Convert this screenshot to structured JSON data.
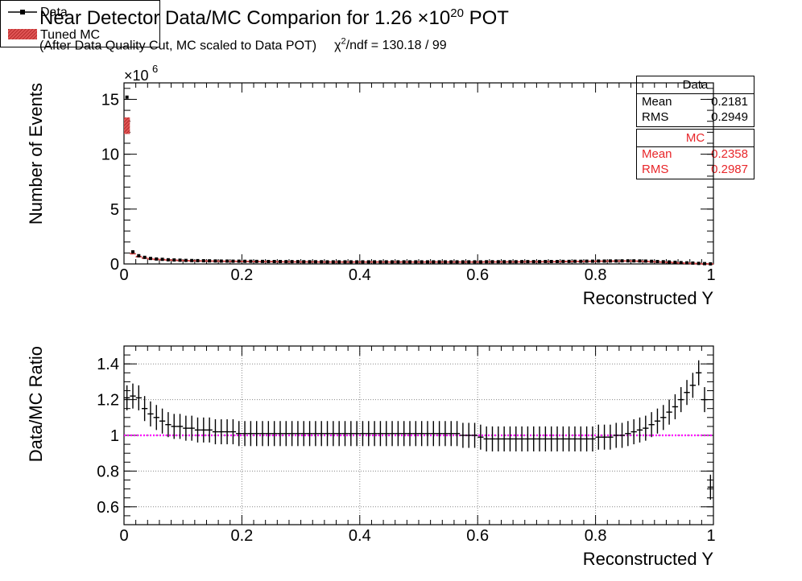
{
  "title_main": "Near Detector Data/MC Comparion for 1.26 ×10",
  "title_exp": "20",
  "title_suffix": " POT",
  "subtitle_main": "(After Data Quality Cut, MC scaled to Data POT)",
  "chi2_chi": "χ",
  "chi2_exp": "2",
  "chi2_rest": "/ndf = 130.18 / 99",
  "legend": {
    "data_label": "Data",
    "mc_label": "Tuned MC"
  },
  "stats_data": {
    "title": "Data",
    "mean_label": "Mean",
    "mean_value": "0.2181",
    "rms_label": "RMS",
    "rms_value": "0.2949"
  },
  "stats_mc": {
    "title": "MC",
    "mean_label": "Mean",
    "mean_value": "0.2358",
    "rms_label": "RMS",
    "rms_value": "0.2987"
  },
  "colors": {
    "data": "#000000",
    "mc": "#e8262a",
    "mc_hatch": "#b22222",
    "ratio_line": "#ff00ff",
    "grid": "#888888"
  },
  "chart_data": [
    {
      "type": "scatter",
      "xlabel": "Reconstructed Y",
      "ylabel": "Number of Events",
      "y_multiplier": "×10",
      "y_multiplier_exp": "6",
      "xlim": [
        0,
        1
      ],
      "ylim": [
        0,
        16.5
      ],
      "xticks": [
        0,
        0.2,
        0.4,
        0.6,
        0.8,
        1
      ],
      "xtick_labels": [
        "0",
        "0.2",
        "0.4",
        "0.6",
        "0.8",
        "1"
      ],
      "yticks": [
        0,
        5,
        10,
        15
      ],
      "ytick_labels": [
        "0",
        "5",
        "10",
        "15"
      ],
      "grid": false,
      "series": [
        {
          "name": "Data",
          "x_start": 0.005,
          "bin_width": 0.01,
          "values": [
            15.2,
            1.1,
            0.75,
            0.6,
            0.5,
            0.45,
            0.42,
            0.38,
            0.36,
            0.34,
            0.32,
            0.31,
            0.3,
            0.29,
            0.28,
            0.27,
            0.26,
            0.26,
            0.25,
            0.25,
            0.24,
            0.24,
            0.23,
            0.23,
            0.22,
            0.22,
            0.22,
            0.21,
            0.21,
            0.21,
            0.2,
            0.2,
            0.2,
            0.2,
            0.19,
            0.19,
            0.19,
            0.19,
            0.19,
            0.19,
            0.19,
            0.19,
            0.19,
            0.19,
            0.19,
            0.19,
            0.19,
            0.19,
            0.19,
            0.19,
            0.19,
            0.19,
            0.19,
            0.19,
            0.19,
            0.19,
            0.19,
            0.19,
            0.19,
            0.19,
            0.19,
            0.2,
            0.2,
            0.2,
            0.2,
            0.2,
            0.2,
            0.21,
            0.21,
            0.21,
            0.21,
            0.22,
            0.22,
            0.22,
            0.23,
            0.23,
            0.24,
            0.24,
            0.25,
            0.25,
            0.26,
            0.26,
            0.27,
            0.27,
            0.28,
            0.28,
            0.28,
            0.27,
            0.26,
            0.24,
            0.22,
            0.2,
            0.18,
            0.15,
            0.12,
            0.1,
            0.08,
            0.05,
            0.03,
            0.01
          ]
        },
        {
          "name": "Tuned MC",
          "x_start": 0.005,
          "bin_width": 0.01,
          "values": [
            12.6,
            0.95,
            0.68,
            0.55,
            0.47,
            0.43,
            0.4,
            0.37,
            0.35,
            0.33,
            0.31,
            0.3,
            0.29,
            0.28,
            0.27,
            0.27,
            0.26,
            0.25,
            0.25,
            0.24,
            0.24,
            0.23,
            0.23,
            0.22,
            0.22,
            0.22,
            0.21,
            0.21,
            0.21,
            0.2,
            0.2,
            0.2,
            0.2,
            0.19,
            0.19,
            0.19,
            0.19,
            0.19,
            0.19,
            0.19,
            0.19,
            0.19,
            0.19,
            0.19,
            0.19,
            0.19,
            0.19,
            0.19,
            0.19,
            0.19,
            0.19,
            0.19,
            0.19,
            0.19,
            0.19,
            0.19,
            0.19,
            0.19,
            0.19,
            0.19,
            0.19,
            0.2,
            0.2,
            0.2,
            0.2,
            0.2,
            0.2,
            0.21,
            0.21,
            0.21,
            0.21,
            0.22,
            0.22,
            0.22,
            0.23,
            0.23,
            0.24,
            0.24,
            0.25,
            0.25,
            0.26,
            0.26,
            0.27,
            0.27,
            0.28,
            0.28,
            0.27,
            0.26,
            0.24,
            0.22,
            0.2,
            0.18,
            0.16,
            0.13,
            0.1,
            0.08,
            0.06,
            0.04,
            0.02,
            0.01
          ]
        }
      ]
    },
    {
      "type": "scatter",
      "xlabel": "Reconstructed Y",
      "ylabel": "Data/MC Ratio",
      "xlim": [
        0,
        1
      ],
      "ylim": [
        0.5,
        1.5
      ],
      "xticks": [
        0,
        0.2,
        0.4,
        0.6,
        0.8,
        1
      ],
      "xtick_labels": [
        "0",
        "0.2",
        "0.4",
        "0.6",
        "0.8",
        "1"
      ],
      "yticks": [
        0.6,
        0.8,
        1,
        1.2,
        1.4
      ],
      "ytick_labels": [
        "0.6",
        "0.8",
        "1",
        "1.2",
        "1.4"
      ],
      "grid": true,
      "reference_line": 1,
      "x_start": 0.005,
      "bin_width": 0.01,
      "values": [
        1.21,
        1.22,
        1.21,
        1.15,
        1.12,
        1.1,
        1.08,
        1.06,
        1.05,
        1.05,
        1.04,
        1.04,
        1.03,
        1.03,
        1.03,
        1.02,
        1.02,
        1.02,
        1.02,
        1.01,
        1.01,
        1.01,
        1.01,
        1.01,
        1.01,
        1.01,
        1.01,
        1.01,
        1.01,
        1.01,
        1.01,
        1.01,
        1.01,
        1.01,
        1.01,
        1.01,
        1.01,
        1.01,
        1.01,
        1.01,
        1.01,
        1.01,
        1.01,
        1.01,
        1.01,
        1.01,
        1.01,
        1.01,
        1.01,
        1.01,
        1.01,
        1.01,
        1.01,
        1.01,
        1.01,
        1.01,
        1.01,
        1.0,
        1.0,
        1.0,
        0.99,
        0.98,
        0.98,
        0.98,
        0.98,
        0.98,
        0.98,
        0.98,
        0.98,
        0.98,
        0.98,
        0.98,
        0.98,
        0.98,
        0.98,
        0.98,
        0.98,
        0.98,
        0.98,
        0.98,
        0.99,
        0.99,
        0.99,
        1.0,
        1.0,
        1.01,
        1.02,
        1.03,
        1.04,
        1.06,
        1.08,
        1.1,
        1.13,
        1.16,
        1.2,
        1.24,
        1.28,
        1.35,
        1.2,
        0.71
      ],
      "errors": [
        0.07,
        0.07,
        0.07,
        0.07,
        0.07,
        0.07,
        0.07,
        0.07,
        0.07,
        0.07,
        0.07,
        0.07,
        0.07,
        0.07,
        0.07,
        0.07,
        0.07,
        0.07,
        0.07,
        0.07,
        0.07,
        0.07,
        0.07,
        0.07,
        0.07,
        0.07,
        0.07,
        0.07,
        0.07,
        0.07,
        0.07,
        0.07,
        0.07,
        0.07,
        0.07,
        0.07,
        0.07,
        0.07,
        0.07,
        0.07,
        0.07,
        0.07,
        0.07,
        0.07,
        0.07,
        0.07,
        0.07,
        0.07,
        0.07,
        0.07,
        0.07,
        0.07,
        0.07,
        0.07,
        0.07,
        0.07,
        0.07,
        0.07,
        0.07,
        0.07,
        0.07,
        0.07,
        0.07,
        0.07,
        0.07,
        0.07,
        0.07,
        0.07,
        0.07,
        0.07,
        0.07,
        0.07,
        0.07,
        0.07,
        0.07,
        0.07,
        0.07,
        0.07,
        0.07,
        0.07,
        0.07,
        0.07,
        0.07,
        0.07,
        0.07,
        0.07,
        0.07,
        0.07,
        0.07,
        0.07,
        0.07,
        0.07,
        0.07,
        0.07,
        0.07,
        0.07,
        0.07,
        0.07,
        0.07,
        0.07
      ]
    }
  ]
}
